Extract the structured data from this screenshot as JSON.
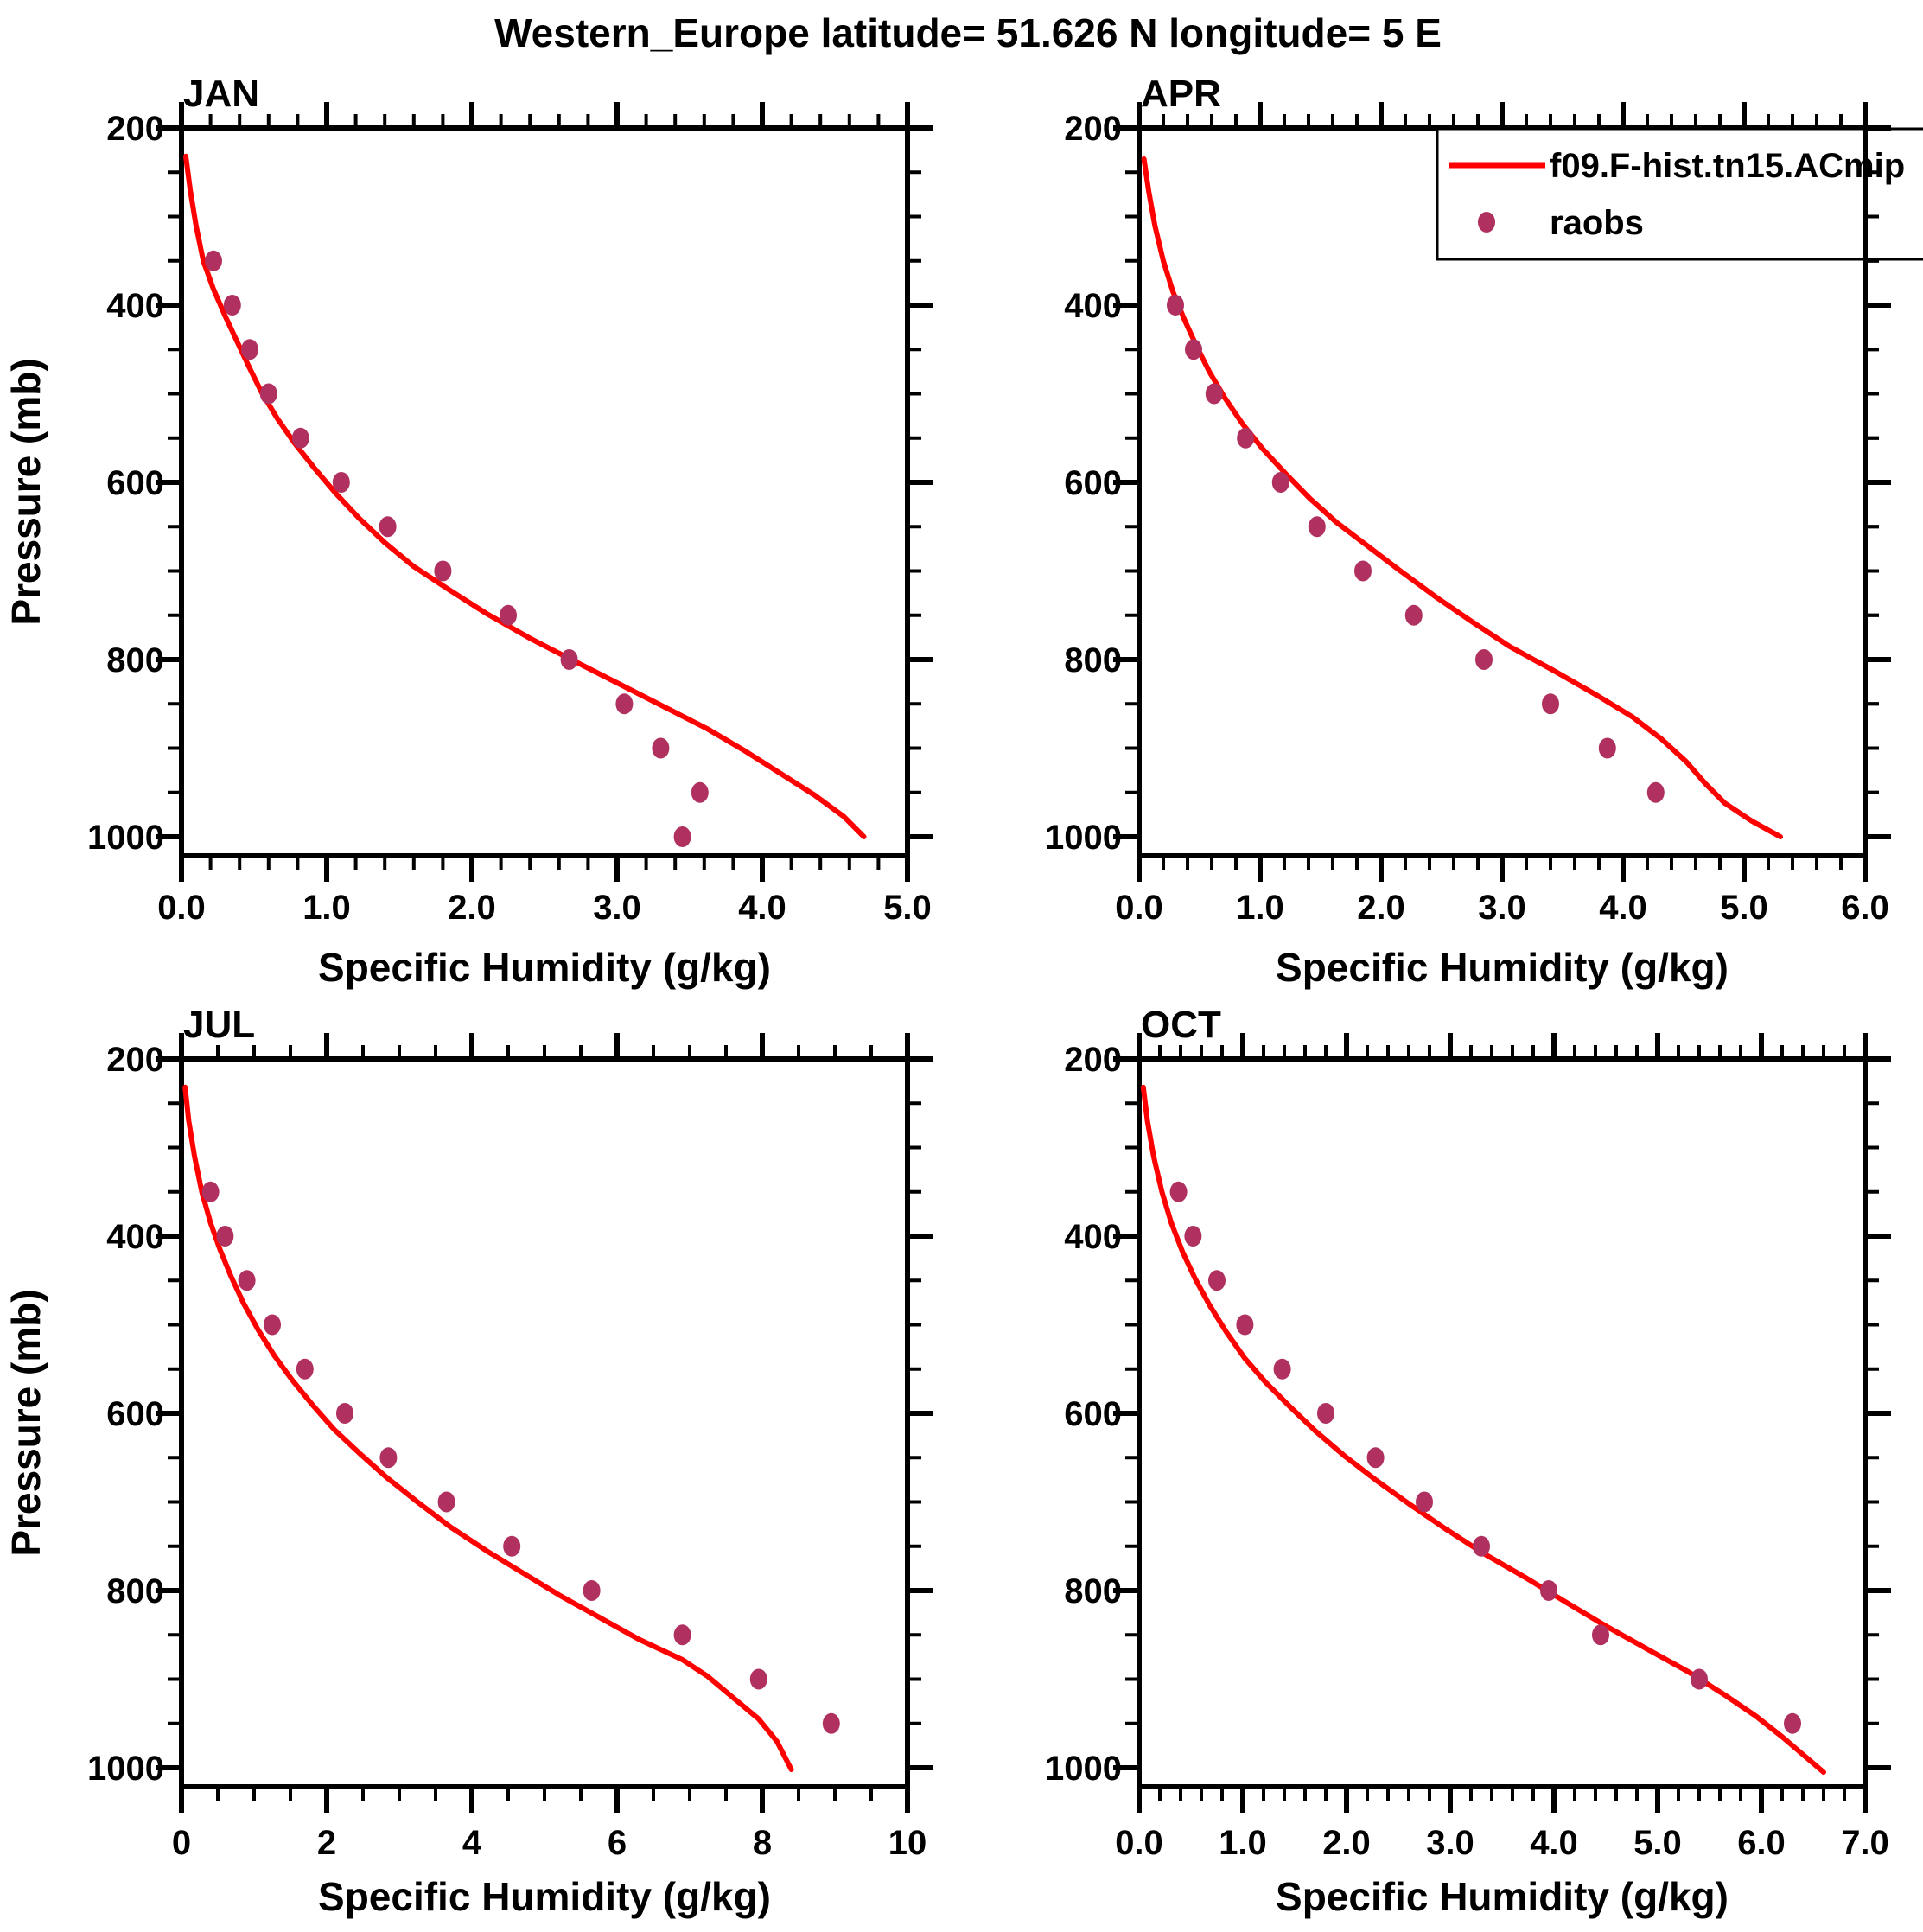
{
  "title": "Western_Europe  latitude= 51.626 N longitude= 5 E",
  "colors": {
    "model_line": "#FF0000",
    "raobs_dot": "#B03060",
    "axis": "#000000",
    "background": "#FFFFFF"
  },
  "legend": {
    "panel": "APR",
    "entries": [
      {
        "label": "f09.F-hist.tn15.ACmip",
        "symbol": "line",
        "color": "#FF0000"
      },
      {
        "label": "raobs",
        "symbol": "dot",
        "color": "#B03060"
      }
    ]
  },
  "chart_data": [
    {
      "type": "line",
      "title": "JAN",
      "xlabel": "Specific Humidity (g/kg)",
      "ylabel": "Pressure (mb)",
      "xlim": [
        0.0,
        5.0
      ],
      "x_major": 1.0,
      "x_minor": 0.2,
      "x_decimals": 1,
      "ylim": [
        200,
        1000
      ],
      "y_major": 200,
      "y_minor": 50,
      "y_decimals": 0,
      "y_inverted": true,
      "grid": false,
      "legend": false,
      "series": [
        {
          "name": "f09.F-hist.tn15.ACmip",
          "kind": "line",
          "color": "#FF0000",
          "points": [
            [
              0.03,
              232
            ],
            [
              0.06,
              270
            ],
            [
              0.1,
              310
            ],
            [
              0.15,
              350
            ],
            [
              0.22,
              382
            ],
            [
              0.3,
              412
            ],
            [
              0.38,
              440
            ],
            [
              0.46,
              468
            ],
            [
              0.55,
              498
            ],
            [
              0.66,
              528
            ],
            [
              0.78,
              556
            ],
            [
              0.92,
              585
            ],
            [
              1.06,
              612
            ],
            [
              1.22,
              640
            ],
            [
              1.4,
              668
            ],
            [
              1.6,
              695
            ],
            [
              1.85,
              722
            ],
            [
              2.1,
              748
            ],
            [
              2.4,
              776
            ],
            [
              2.72,
              803
            ],
            [
              3.02,
              828
            ],
            [
              3.32,
              853
            ],
            [
              3.62,
              878
            ],
            [
              3.88,
              903
            ],
            [
              4.12,
              928
            ],
            [
              4.36,
              953
            ],
            [
              4.56,
              977
            ],
            [
              4.7,
              1000
            ]
          ]
        },
        {
          "name": "raobs",
          "kind": "scatter",
          "color": "#B03060",
          "points": [
            [
              0.22,
              350
            ],
            [
              0.35,
              400
            ],
            [
              0.47,
              450
            ],
            [
              0.6,
              500
            ],
            [
              0.82,
              550
            ],
            [
              1.1,
              600
            ],
            [
              1.42,
              650
            ],
            [
              1.8,
              700
            ],
            [
              2.25,
              750
            ],
            [
              2.67,
              800
            ],
            [
              3.05,
              850
            ],
            [
              3.3,
              900
            ],
            [
              3.57,
              950
            ],
            [
              3.45,
              1000
            ]
          ]
        }
      ]
    },
    {
      "type": "line",
      "title": "APR",
      "xlabel": "Specific Humidity (g/kg)",
      "ylabel": "Pressure (mb)",
      "xlim": [
        0.0,
        6.0
      ],
      "x_major": 1.0,
      "x_minor": 0.2,
      "x_decimals": 1,
      "ylim": [
        200,
        1000
      ],
      "y_major": 200,
      "y_minor": 50,
      "y_decimals": 0,
      "y_inverted": true,
      "grid": false,
      "legend": true,
      "series": [
        {
          "name": "f09.F-hist.tn15.ACmip",
          "kind": "line",
          "color": "#FF0000",
          "points": [
            [
              0.04,
              235
            ],
            [
              0.08,
              272
            ],
            [
              0.13,
              310
            ],
            [
              0.2,
              350
            ],
            [
              0.28,
              385
            ],
            [
              0.37,
              415
            ],
            [
              0.47,
              445
            ],
            [
              0.58,
              475
            ],
            [
              0.71,
              505
            ],
            [
              0.86,
              535
            ],
            [
              1.02,
              562
            ],
            [
              1.21,
              590
            ],
            [
              1.41,
              618
            ],
            [
              1.63,
              645
            ],
            [
              1.89,
              672
            ],
            [
              2.16,
              700
            ],
            [
              2.46,
              730
            ],
            [
              2.76,
              758
            ],
            [
              3.06,
              785
            ],
            [
              3.42,
              812
            ],
            [
              3.78,
              840
            ],
            [
              4.08,
              865
            ],
            [
              4.32,
              890
            ],
            [
              4.52,
              915
            ],
            [
              4.68,
              940
            ],
            [
              4.84,
              962
            ],
            [
              5.06,
              982
            ],
            [
              5.3,
              1000
            ]
          ]
        },
        {
          "name": "raobs",
          "kind": "scatter",
          "color": "#B03060",
          "points": [
            [
              0.3,
              400
            ],
            [
              0.45,
              450
            ],
            [
              0.62,
              500
            ],
            [
              0.88,
              550
            ],
            [
              1.17,
              600
            ],
            [
              1.47,
              650
            ],
            [
              1.85,
              700
            ],
            [
              2.27,
              750
            ],
            [
              2.85,
              800
            ],
            [
              3.4,
              850
            ],
            [
              3.87,
              900
            ],
            [
              4.27,
              950
            ]
          ]
        }
      ]
    },
    {
      "type": "line",
      "title": "JUL",
      "xlabel": "Specific Humidity (g/kg)",
      "ylabel": "Pressure (mb)",
      "xlim": [
        0,
        10
      ],
      "x_major": 2,
      "x_minor": 0.5,
      "x_decimals": 0,
      "ylim": [
        200,
        1000
      ],
      "y_major": 200,
      "y_minor": 50,
      "y_decimals": 0,
      "y_inverted": true,
      "grid": false,
      "legend": false,
      "series": [
        {
          "name": "f09.F-hist.tn15.ACmip",
          "kind": "line",
          "color": "#FF0000",
          "points": [
            [
              0.05,
              232
            ],
            [
              0.1,
              270
            ],
            [
              0.18,
              310
            ],
            [
              0.28,
              350
            ],
            [
              0.4,
              385
            ],
            [
              0.53,
              415
            ],
            [
              0.68,
              445
            ],
            [
              0.85,
              475
            ],
            [
              1.05,
              505
            ],
            [
              1.28,
              535
            ],
            [
              1.52,
              562
            ],
            [
              1.8,
              590
            ],
            [
              2.1,
              618
            ],
            [
              2.45,
              645
            ],
            [
              2.82,
              672
            ],
            [
              3.25,
              700
            ],
            [
              3.7,
              728
            ],
            [
              4.2,
              755
            ],
            [
              4.7,
              780
            ],
            [
              5.2,
              805
            ],
            [
              5.75,
              830
            ],
            [
              6.3,
              855
            ],
            [
              6.9,
              878
            ],
            [
              7.25,
              897
            ],
            [
              7.6,
              921
            ],
            [
              7.95,
              945
            ],
            [
              8.2,
              970
            ],
            [
              8.4,
              1002
            ]
          ]
        },
        {
          "name": "raobs",
          "kind": "scatter",
          "color": "#B03060",
          "points": [
            [
              0.4,
              350
            ],
            [
              0.6,
              400
            ],
            [
              0.9,
              450
            ],
            [
              1.25,
              500
            ],
            [
              1.7,
              550
            ],
            [
              2.25,
              600
            ],
            [
              2.85,
              650
            ],
            [
              3.65,
              700
            ],
            [
              4.55,
              750
            ],
            [
              5.65,
              800
            ],
            [
              6.9,
              850
            ],
            [
              7.95,
              900
            ],
            [
              8.95,
              950
            ]
          ]
        }
      ]
    },
    {
      "type": "line",
      "title": "OCT",
      "xlabel": "Specific Humidity (g/kg)",
      "ylabel": "Pressure (mb)",
      "xlim": [
        0.0,
        7.0
      ],
      "x_major": 1.0,
      "x_minor": 0.2,
      "x_decimals": 1,
      "ylim": [
        200,
        1000
      ],
      "y_major": 200,
      "y_minor": 50,
      "y_decimals": 0,
      "y_inverted": true,
      "grid": false,
      "legend": false,
      "series": [
        {
          "name": "f09.F-hist.tn15.ACmip",
          "kind": "line",
          "color": "#FF0000",
          "points": [
            [
              0.04,
              232
            ],
            [
              0.08,
              270
            ],
            [
              0.14,
              310
            ],
            [
              0.22,
              350
            ],
            [
              0.31,
              385
            ],
            [
              0.42,
              418
            ],
            [
              0.54,
              448
            ],
            [
              0.68,
              478
            ],
            [
              0.84,
              508
            ],
            [
              1.02,
              538
            ],
            [
              1.22,
              565
            ],
            [
              1.45,
              592
            ],
            [
              1.7,
              620
            ],
            [
              1.98,
              648
            ],
            [
              2.28,
              675
            ],
            [
              2.6,
              702
            ],
            [
              2.95,
              730
            ],
            [
              3.32,
              758
            ],
            [
              3.72,
              785
            ],
            [
              4.1,
              812
            ],
            [
              4.5,
              840
            ],
            [
              4.9,
              866
            ],
            [
              5.3,
              892
            ],
            [
              5.65,
              918
            ],
            [
              5.95,
              942
            ],
            [
              6.2,
              965
            ],
            [
              6.4,
              985
            ],
            [
              6.6,
              1005
            ]
          ]
        },
        {
          "name": "raobs",
          "kind": "scatter",
          "color": "#B03060",
          "points": [
            [
              0.38,
              350
            ],
            [
              0.52,
              400
            ],
            [
              0.75,
              450
            ],
            [
              1.02,
              500
            ],
            [
              1.38,
              550
            ],
            [
              1.8,
              600
            ],
            [
              2.28,
              650
            ],
            [
              2.75,
              700
            ],
            [
              3.3,
              750
            ],
            [
              3.95,
              800
            ],
            [
              4.45,
              850
            ],
            [
              5.4,
              900
            ],
            [
              6.3,
              950
            ]
          ]
        }
      ]
    }
  ]
}
